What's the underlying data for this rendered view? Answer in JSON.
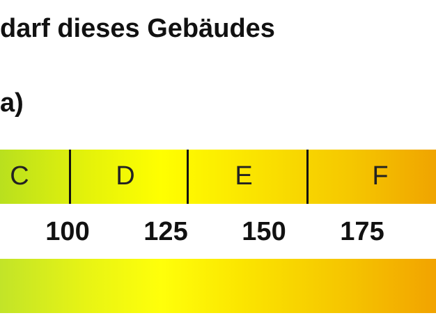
{
  "header": {
    "title": "darf dieses Gebäudes",
    "subtitle": "a)"
  },
  "scale": {
    "classes": [
      "C",
      "D",
      "E",
      "F"
    ],
    "thresholds": [
      100,
      125,
      150,
      175
    ]
  }
}
